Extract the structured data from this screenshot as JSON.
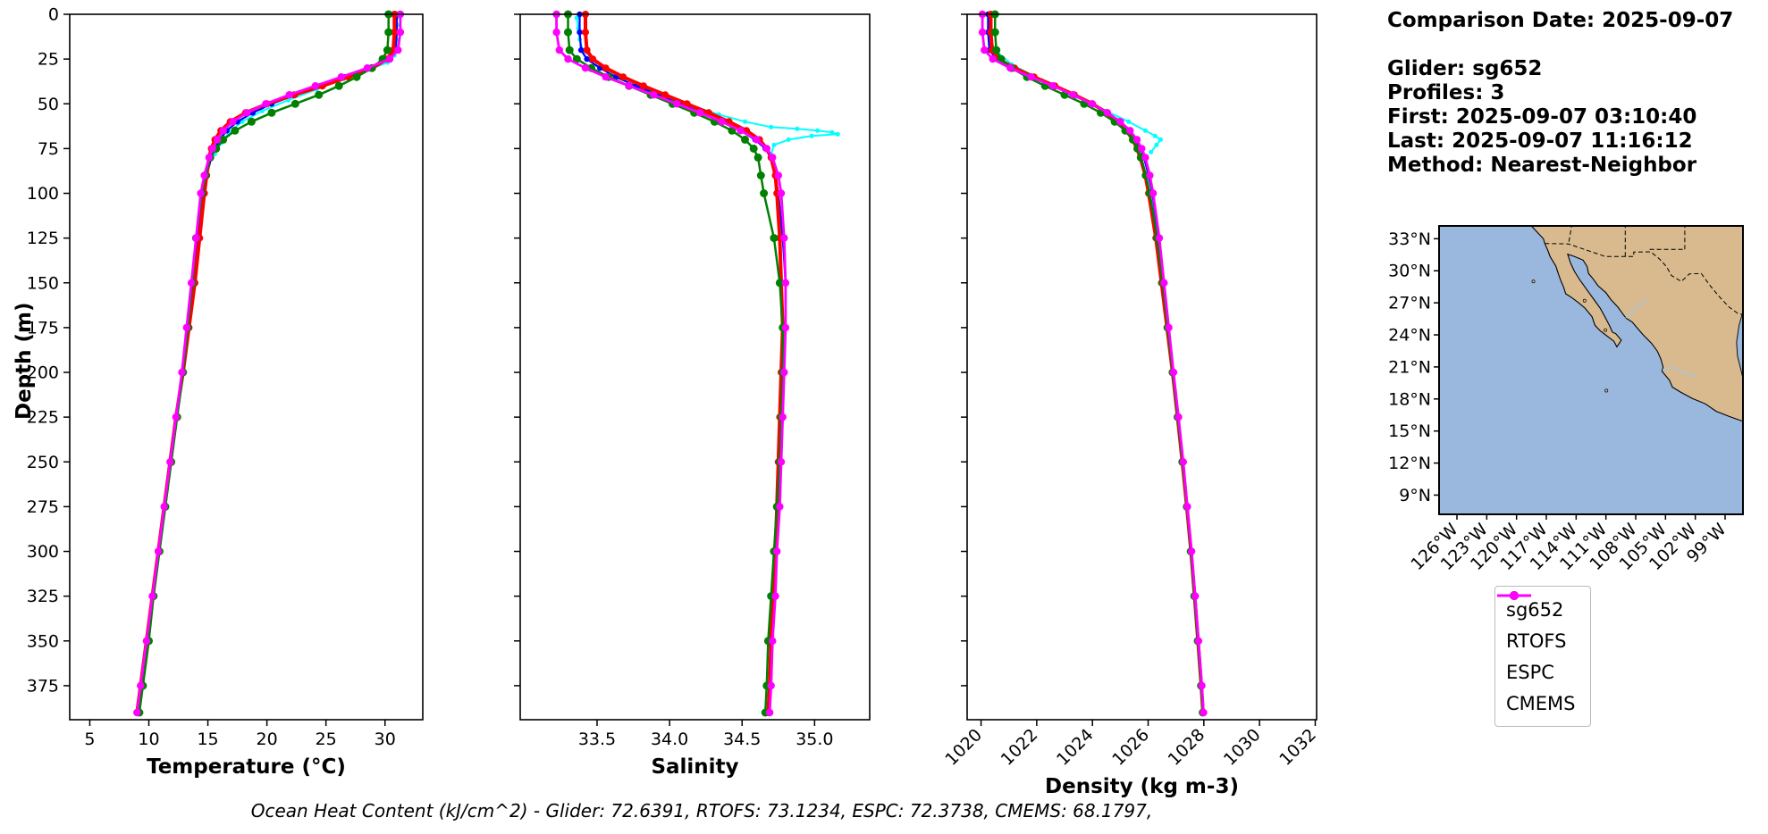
{
  "info_panel": {
    "comparison_date": "Comparison Date: 2025-09-07",
    "glider": "Glider: sg652",
    "profiles": "Profiles: 3",
    "first": "First: 2025-09-07 03:10:40",
    "last": "Last: 2025-09-07 11:16:12",
    "method": "Method: Nearest-Neighbor"
  },
  "caption": "Ocean Heat Content (kJ/cm^2) - Glider: 72.6391,  RTOFS: 73.1234,  ESPC: 72.3738,  CMEMS: 68.1797,",
  "legend": {
    "items": [
      {
        "label": "sg652",
        "color": "#0000ff"
      },
      {
        "label": "RTOFS",
        "color": "#ff0000"
      },
      {
        "label": "ESPC",
        "color": "#008000"
      },
      {
        "label": "CMEMS",
        "color": "#ff00ff"
      }
    ]
  },
  "map": {
    "ocean_color": "#9ab7dd",
    "land_color": "#d8ba8e",
    "river_color": "#9fcae8",
    "lat_ticks": [
      {
        "v": 33,
        "label": "33°N"
      },
      {
        "v": 30,
        "label": "30°N"
      },
      {
        "v": 27,
        "label": "27°N"
      },
      {
        "v": 24,
        "label": "24°N"
      },
      {
        "v": 21,
        "label": "21°N"
      },
      {
        "v": 18,
        "label": "18°N"
      },
      {
        "v": 15,
        "label": "15°N"
      },
      {
        "v": 12,
        "label": "12°N"
      },
      {
        "v": 9,
        "label": "9°N"
      }
    ],
    "lon_ticks": [
      {
        "v": -126,
        "label": "126°W"
      },
      {
        "v": -123,
        "label": "123°W"
      },
      {
        "v": -120,
        "label": "120°W"
      },
      {
        "v": -117,
        "label": "117°W"
      },
      {
        "v": -114,
        "label": "114°W"
      },
      {
        "v": -111,
        "label": "111°W"
      },
      {
        "v": -108,
        "label": "108°W"
      },
      {
        "v": -105,
        "label": "105°W"
      },
      {
        "v": -102,
        "label": "102°W"
      },
      {
        "v": -99,
        "label": "99°W"
      }
    ]
  },
  "chart_data": {
    "type": "line",
    "ylabel": "Depth (m)",
    "ylim": [
      0,
      394
    ],
    "depth_ticks": [
      0,
      25,
      50,
      75,
      100,
      125,
      150,
      175,
      200,
      225,
      250,
      275,
      300,
      325,
      350,
      375
    ],
    "depths": [
      0,
      10,
      20,
      25,
      30,
      35,
      40,
      45,
      50,
      55,
      60,
      65,
      70,
      75,
      80,
      90,
      100,
      125,
      150,
      175,
      200,
      225,
      250,
      275,
      300,
      325,
      350,
      375,
      390
    ],
    "charts": [
      {
        "id": "temperature",
        "xlabel": "Temperature (°C)",
        "xlim": [
          3.3,
          33.2
        ],
        "xticks": [
          5,
          10,
          15,
          20,
          25,
          30
        ],
        "xtick_labels": [
          "5",
          "10",
          "15",
          "20",
          "25",
          "30"
        ],
        "xtick_rotation": 0,
        "series": [
          {
            "name": "sg652",
            "color": "#0000ff",
            "values": [
              31.0,
              31.0,
              30.9,
              30.3,
              28.6,
              26.6,
              24.5,
              22.4,
              20.4,
              18.8,
              17.5,
              16.6,
              16.0,
              15.6,
              15.3,
              14.9,
              14.6,
              14.1,
              13.7,
              13.3,
              12.9,
              12.4,
              11.9,
              11.4,
              10.9,
              10.4,
              9.9,
              9.4,
              9.1
            ]
          },
          {
            "name": "RTOFS",
            "color": "#ff0000",
            "values": [
              30.8,
              30.8,
              30.7,
              30.2,
              28.9,
              26.9,
              24.7,
              22.3,
              20.0,
              18.2,
              16.9,
              16.1,
              15.6,
              15.3,
              15.1,
              14.9,
              14.7,
              14.3,
              13.9,
              13.4,
              12.9,
              12.3,
              11.8,
              11.3,
              10.8,
              10.3,
              9.8,
              9.3,
              9.0
            ]
          },
          {
            "name": "ESPC",
            "color": "#008000",
            "values": [
              30.3,
              30.3,
              30.2,
              29.8,
              28.9,
              27.6,
              26.1,
              24.4,
              22.4,
              20.4,
              18.7,
              17.3,
              16.3,
              15.7,
              15.2,
              14.8,
              14.5,
              14.0,
              13.7,
              13.3,
              12.9,
              12.4,
              11.9,
              11.4,
              10.9,
              10.4,
              10.0,
              9.5,
              9.2
            ]
          },
          {
            "name": "CMEMS",
            "color": "#ff00ff",
            "values": [
              31.3,
              31.3,
              31.1,
              30.4,
              28.5,
              26.3,
              24.1,
              21.9,
              19.9,
              18.3,
              17.1,
              16.3,
              15.8,
              15.4,
              15.1,
              14.7,
              14.4,
              14.0,
              13.6,
              13.2,
              12.8,
              12.3,
              11.8,
              11.3,
              10.8,
              10.3,
              9.8,
              9.3,
              9.0
            ]
          }
        ],
        "raw_scatter": {
          "name": "glider-raw",
          "color": "#00ffff",
          "points": [
            [
              31.0,
              2
            ],
            [
              31.05,
              6
            ],
            [
              31.0,
              10
            ],
            [
              31.0,
              14
            ],
            [
              30.95,
              18
            ],
            [
              30.8,
              23
            ],
            [
              30.2,
              27
            ],
            [
              28.6,
              31
            ],
            [
              26.5,
              36
            ],
            [
              24.2,
              42
            ],
            [
              21.8,
              48
            ],
            [
              19.6,
              54
            ],
            [
              17.9,
              60
            ],
            [
              16.8,
              66
            ],
            [
              16.1,
              72
            ],
            [
              15.6,
              78
            ]
          ]
        }
      },
      {
        "id": "salinity",
        "xlabel": "Salinity",
        "xlim": [
          32.97,
          35.38
        ],
        "xticks": [
          33.5,
          34.0,
          34.5,
          35.0
        ],
        "xtick_labels": [
          "33.5",
          "34.0",
          "34.5",
          "35.0"
        ],
        "xtick_rotation": 0,
        "series": [
          {
            "name": "sg652",
            "color": "#0000ff",
            "values": [
              33.38,
              33.38,
              33.39,
              33.43,
              33.52,
              33.63,
              33.77,
              33.92,
              34.07,
              34.22,
              34.36,
              34.49,
              34.59,
              34.66,
              34.7,
              34.73,
              34.75,
              34.78,
              34.8,
              34.8,
              34.79,
              34.78,
              34.77,
              34.75,
              34.74,
              34.72,
              34.71,
              34.7,
              34.69
            ]
          },
          {
            "name": "RTOFS",
            "color": "#ff0000",
            "values": [
              33.42,
              33.42,
              33.43,
              33.47,
              33.56,
              33.68,
              33.82,
              33.97,
              34.12,
              34.27,
              34.41,
              34.53,
              34.62,
              34.67,
              34.7,
              34.73,
              34.74,
              34.76,
              34.77,
              34.78,
              34.77,
              34.76,
              34.75,
              34.74,
              34.73,
              34.71,
              34.7,
              34.69,
              34.68
            ]
          },
          {
            "name": "ESPC",
            "color": "#008000",
            "values": [
              33.3,
              33.3,
              33.31,
              33.36,
              33.46,
              33.58,
              33.72,
              33.87,
              34.02,
              34.17,
              34.31,
              34.43,
              34.52,
              34.58,
              34.61,
              34.63,
              34.65,
              34.72,
              34.76,
              34.78,
              34.78,
              34.77,
              34.76,
              34.74,
              34.72,
              34.7,
              34.68,
              34.67,
              34.66
            ]
          },
          {
            "name": "CMEMS",
            "color": "#ff00ff",
            "values": [
              33.22,
              33.22,
              33.24,
              33.3,
              33.42,
              33.56,
              33.72,
              33.89,
              34.05,
              34.21,
              34.36,
              34.49,
              34.6,
              34.67,
              34.71,
              34.75,
              34.77,
              34.79,
              34.8,
              34.8,
              34.79,
              34.78,
              34.77,
              34.76,
              34.74,
              34.73,
              34.71,
              34.7,
              34.69
            ]
          }
        ],
        "raw_scatter": {
          "name": "glider-raw",
          "color": "#00ffff",
          "points": [
            [
              33.36,
              2
            ],
            [
              33.37,
              8
            ],
            [
              33.38,
              14
            ],
            [
              33.4,
              20
            ],
            [
              33.5,
              27
            ],
            [
              33.68,
              35
            ],
            [
              33.9,
              43
            ],
            [
              34.12,
              50
            ],
            [
              34.34,
              56
            ],
            [
              34.52,
              60
            ],
            [
              34.7,
              63
            ],
            [
              34.88,
              64
            ],
            [
              35.02,
              65
            ],
            [
              35.12,
              66
            ],
            [
              35.16,
              67
            ],
            [
              34.98,
              68
            ],
            [
              34.82,
              70
            ],
            [
              34.72,
              73
            ],
            [
              34.7,
              78
            ]
          ]
        }
      },
      {
        "id": "density",
        "xlabel": "Density (kg m-3)",
        "xlim": [
          1019.5,
          1032.05
        ],
        "xticks": [
          1020,
          1022,
          1024,
          1026,
          1028,
          1030,
          1032
        ],
        "xtick_labels": [
          "1020",
          "1022",
          "1024",
          "1026",
          "1028",
          "1030",
          "1032"
        ],
        "xtick_rotation": 45,
        "series": [
          {
            "name": "sg652",
            "color": "#0000ff",
            "values": [
              1020.25,
              1020.25,
              1020.3,
              1020.55,
              1021.15,
              1021.85,
              1022.6,
              1023.3,
              1023.95,
              1024.5,
              1024.95,
              1025.3,
              1025.55,
              1025.72,
              1025.85,
              1026.02,
              1026.15,
              1026.38,
              1026.55,
              1026.72,
              1026.9,
              1027.08,
              1027.25,
              1027.4,
              1027.55,
              1027.68,
              1027.8,
              1027.92,
              1027.98
            ]
          },
          {
            "name": "RTOFS",
            "color": "#ff0000",
            "values": [
              1020.35,
              1020.35,
              1020.4,
              1020.62,
              1021.2,
              1021.9,
              1022.65,
              1023.35,
              1024.0,
              1024.52,
              1024.92,
              1025.22,
              1025.45,
              1025.6,
              1025.72,
              1025.9,
              1026.02,
              1026.28,
              1026.48,
              1026.68,
              1026.88,
              1027.06,
              1027.23,
              1027.39,
              1027.54,
              1027.67,
              1027.79,
              1027.91,
              1027.97
            ]
          },
          {
            "name": "ESPC",
            "color": "#008000",
            "values": [
              1020.5,
              1020.5,
              1020.55,
              1020.72,
              1021.1,
              1021.65,
              1022.3,
              1023.0,
              1023.7,
              1024.3,
              1024.8,
              1025.18,
              1025.45,
              1025.62,
              1025.74,
              1025.92,
              1026.06,
              1026.32,
              1026.52,
              1026.7,
              1026.88,
              1027.06,
              1027.23,
              1027.39,
              1027.53,
              1027.66,
              1027.78,
              1027.9,
              1027.96
            ]
          },
          {
            "name": "CMEMS",
            "color": "#ff00ff",
            "values": [
              1020.05,
              1020.05,
              1020.12,
              1020.42,
              1021.05,
              1021.8,
              1022.58,
              1023.3,
              1023.98,
              1024.54,
              1025.0,
              1025.35,
              1025.6,
              1025.77,
              1025.9,
              1026.06,
              1026.18,
              1026.4,
              1026.57,
              1026.74,
              1026.91,
              1027.09,
              1027.26,
              1027.41,
              1027.56,
              1027.69,
              1027.81,
              1027.93,
              1027.99
            ]
          }
        ],
        "raw_scatter": {
          "name": "glider-raw",
          "color": "#00ffff",
          "points": [
            [
              1020.3,
              2
            ],
            [
              1020.3,
              8
            ],
            [
              1020.35,
              14
            ],
            [
              1020.5,
              20
            ],
            [
              1021.1,
              28
            ],
            [
              1022.2,
              37
            ],
            [
              1023.4,
              46
            ],
            [
              1024.5,
              54
            ],
            [
              1025.3,
              60
            ],
            [
              1025.9,
              65
            ],
            [
              1026.25,
              68
            ],
            [
              1026.45,
              70
            ],
            [
              1026.3,
              73
            ],
            [
              1026.1,
              77
            ]
          ]
        }
      }
    ]
  }
}
